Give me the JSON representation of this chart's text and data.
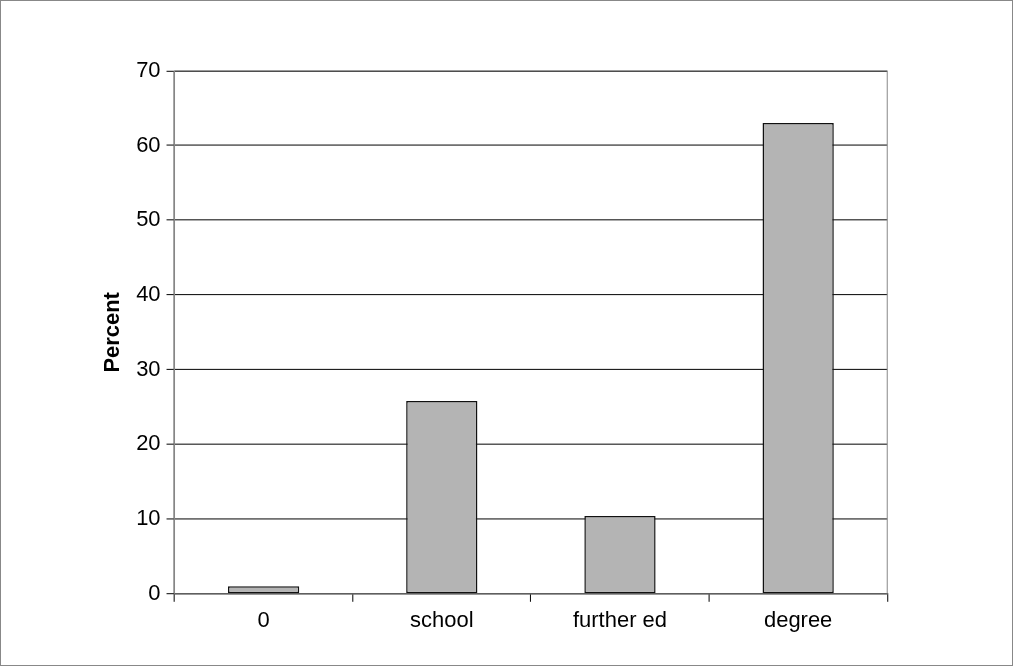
{
  "chart_data": {
    "type": "bar",
    "ylabel": "Percent",
    "categories": [
      "0",
      "school",
      "further ed",
      "degree"
    ],
    "values": [
      1,
      25.8,
      10.4,
      63
    ],
    "color": "#b4b4b4",
    "ylim": [
      0,
      70
    ],
    "yticks": [
      0,
      10,
      20,
      30,
      40,
      50,
      60,
      70
    ],
    "grid": "y"
  }
}
